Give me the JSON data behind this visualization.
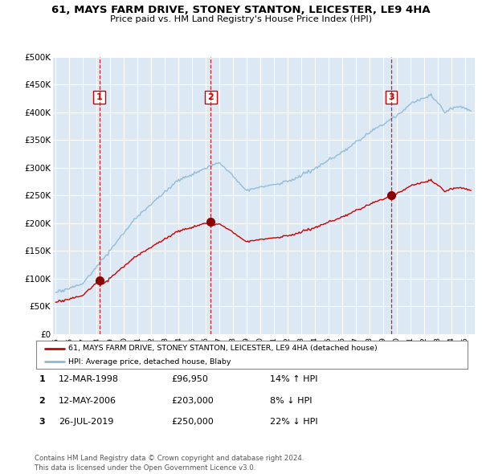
{
  "title": "61, MAYS FARM DRIVE, STONEY STANTON, LEICESTER, LE9 4HA",
  "subtitle": "Price paid vs. HM Land Registry's House Price Index (HPI)",
  "bg_color": "#dce9f5",
  "hpi_color": "#89b8d8",
  "price_color": "#cc0000",
  "transactions": [
    {
      "label": "1",
      "date_num": 1998.19,
      "price": 96950
    },
    {
      "label": "2",
      "date_num": 2006.36,
      "price": 203000
    },
    {
      "label": "3",
      "date_num": 2019.56,
      "price": 250000
    }
  ],
  "table_rows": [
    [
      "1",
      "12-MAR-1998",
      "£96,950",
      "14% ↑ HPI"
    ],
    [
      "2",
      "12-MAY-2006",
      "£203,000",
      "8% ↓ HPI"
    ],
    [
      "3",
      "26-JUL-2019",
      "£250,000",
      "22% ↓ HPI"
    ]
  ],
  "legend_entries": [
    "61, MAYS FARM DRIVE, STONEY STANTON, LEICESTER, LE9 4HA (detached house)",
    "HPI: Average price, detached house, Blaby"
  ],
  "footer": "Contains HM Land Registry data © Crown copyright and database right 2024.\nThis data is licensed under the Open Government Licence v3.0.",
  "ylim": [
    0,
    500000
  ],
  "yticks": [
    0,
    50000,
    100000,
    150000,
    200000,
    250000,
    300000,
    350000,
    400000,
    450000,
    500000
  ],
  "ytick_labels": [
    "£0",
    "£50K",
    "£100K",
    "£150K",
    "£200K",
    "£250K",
    "£300K",
    "£350K",
    "£400K",
    "£450K",
    "£500K"
  ]
}
